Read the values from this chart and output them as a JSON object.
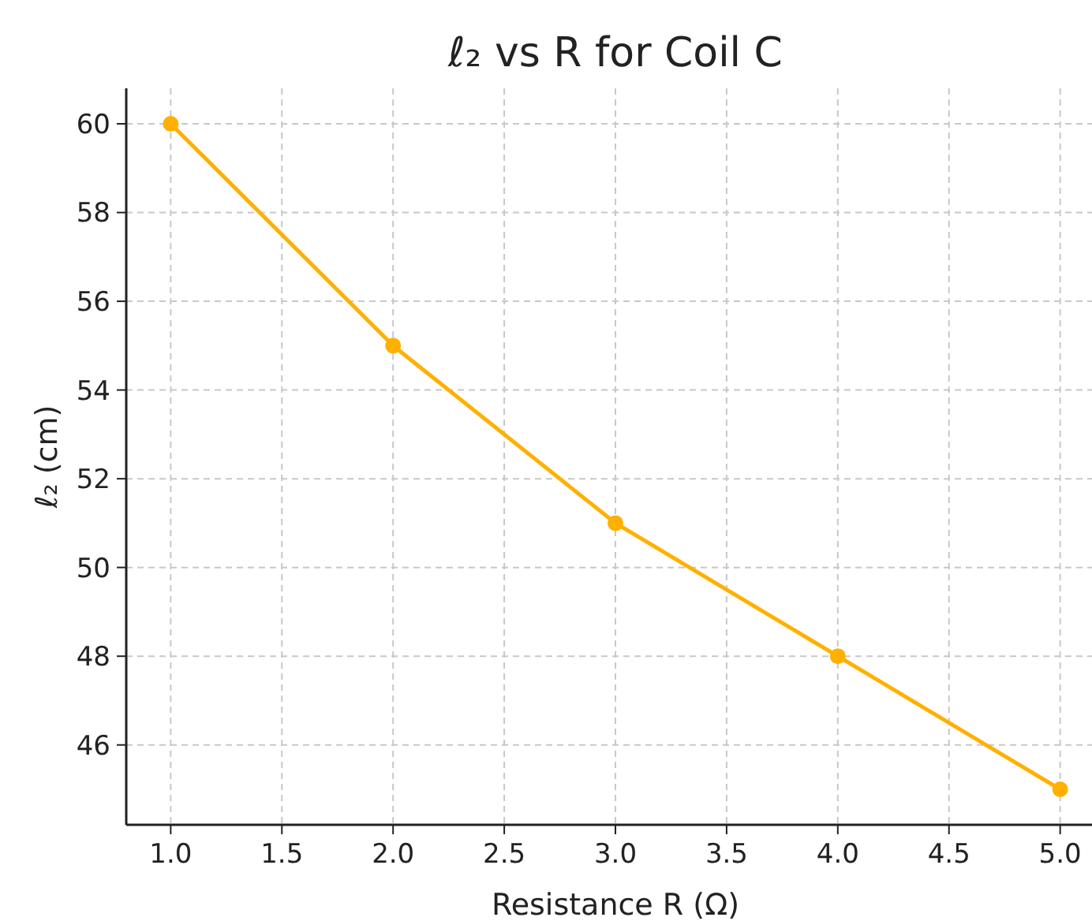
{
  "chart_data": {
    "type": "line",
    "title": "ℓ₂ vs R for Coil C",
    "xlabel": "Resistance R (Ω)",
    "ylabel": "ℓ₂ (cm)",
    "x": [
      1,
      2,
      3,
      4,
      5
    ],
    "series": [
      {
        "color": "#ffb000",
        "values": [
          60,
          55,
          51,
          48,
          45
        ]
      }
    ],
    "xlim": [
      0.8,
      5.2
    ],
    "xticks": [
      {
        "value": 1,
        "label": "1.0"
      },
      {
        "value": 1.5,
        "label": "1.5"
      },
      {
        "value": 2,
        "label": "2.0"
      },
      {
        "value": 2.5,
        "label": "2.5"
      },
      {
        "value": 3,
        "label": "3.0"
      },
      {
        "value": 3.5,
        "label": "3.5"
      },
      {
        "value": 4,
        "label": "4.0"
      },
      {
        "value": 4.5,
        "label": "4.5"
      },
      {
        "value": 5,
        "label": "5.0"
      }
    ],
    "ylim": [
      44.2,
      60.8
    ],
    "yticks": [
      46,
      48,
      50,
      52,
      54,
      56,
      58,
      60
    ],
    "grid": true,
    "marker": "circle",
    "line_style": "solid"
  }
}
